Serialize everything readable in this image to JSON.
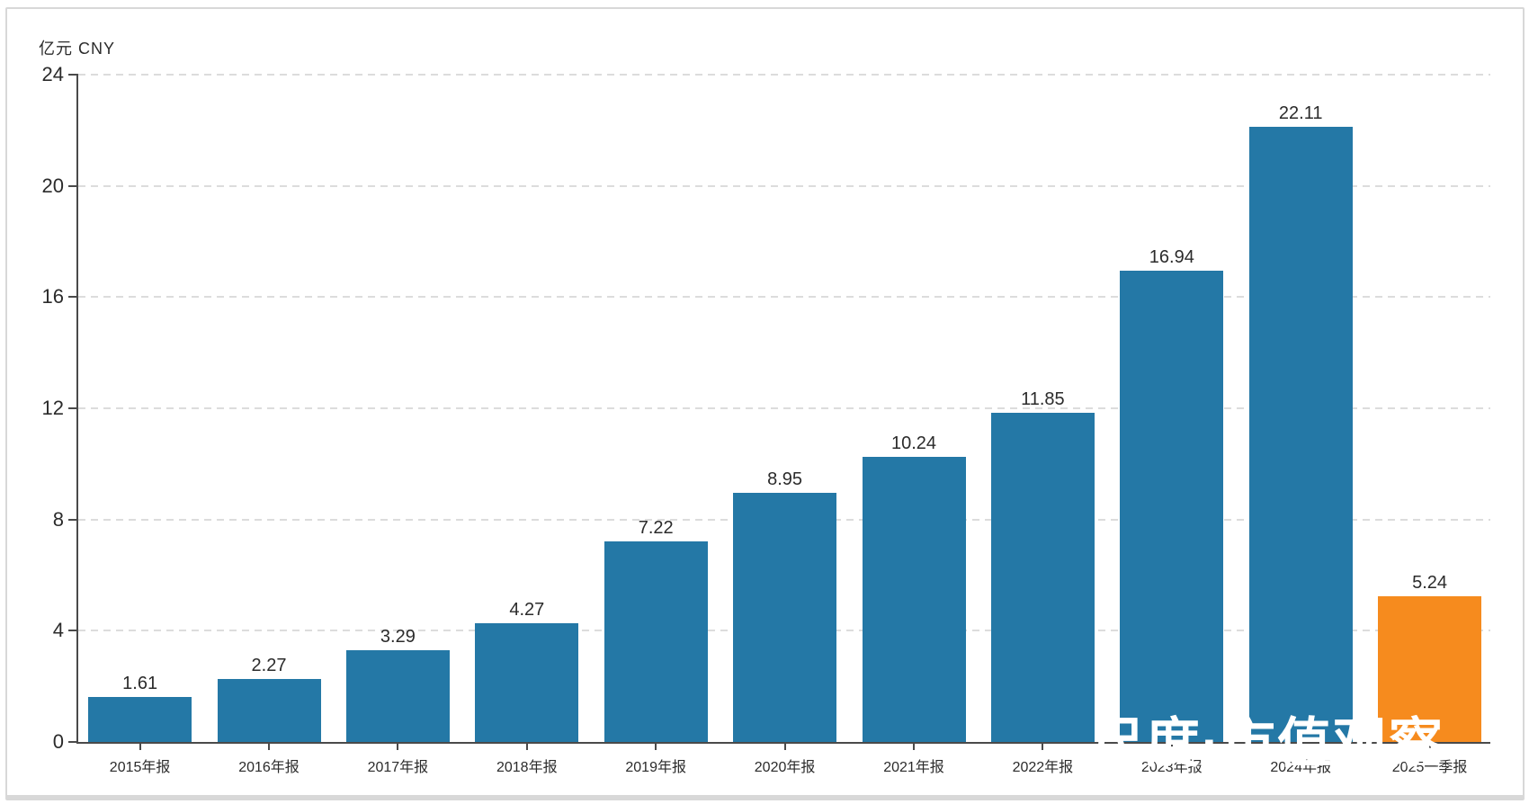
{
  "colors": {
    "bar_blue": "#2478A6",
    "bar_orange": "#F68B1E",
    "axis": "#4a4a4a",
    "grid": "#dcdcdc",
    "text": "#2b2b2b",
    "watermark": "#ffffff",
    "frame_border": "#d8d8d8"
  },
  "watermark": {
    "text": "尺度·市值观察"
  },
  "chart_data": {
    "type": "bar",
    "title": "",
    "ylabel": "亿元 CNY",
    "xlabel": "",
    "categories": [
      "2015年报",
      "2016年报",
      "2017年报",
      "2018年报",
      "2019年报",
      "2020年报",
      "2021年报",
      "2022年报",
      "2023年报",
      "2024年报",
      "2025一季报"
    ],
    "values": [
      1.61,
      2.27,
      3.29,
      4.27,
      7.22,
      8.95,
      10.24,
      11.85,
      16.94,
      22.11,
      5.24
    ],
    "bar_colors": [
      "#2478A6",
      "#2478A6",
      "#2478A6",
      "#2478A6",
      "#2478A6",
      "#2478A6",
      "#2478A6",
      "#2478A6",
      "#2478A6",
      "#2478A6",
      "#F68B1E"
    ],
    "value_labels": [
      "1.61",
      "2.27",
      "3.29",
      "4.27",
      "7.22",
      "8.95",
      "10.24",
      "11.85",
      "16.94",
      "22.11",
      "5.24"
    ],
    "ylim": [
      0,
      24
    ],
    "yticks": [
      0,
      4,
      8,
      12,
      16,
      20,
      24
    ],
    "grid": "dashed-horizontal",
    "legend": "none"
  }
}
